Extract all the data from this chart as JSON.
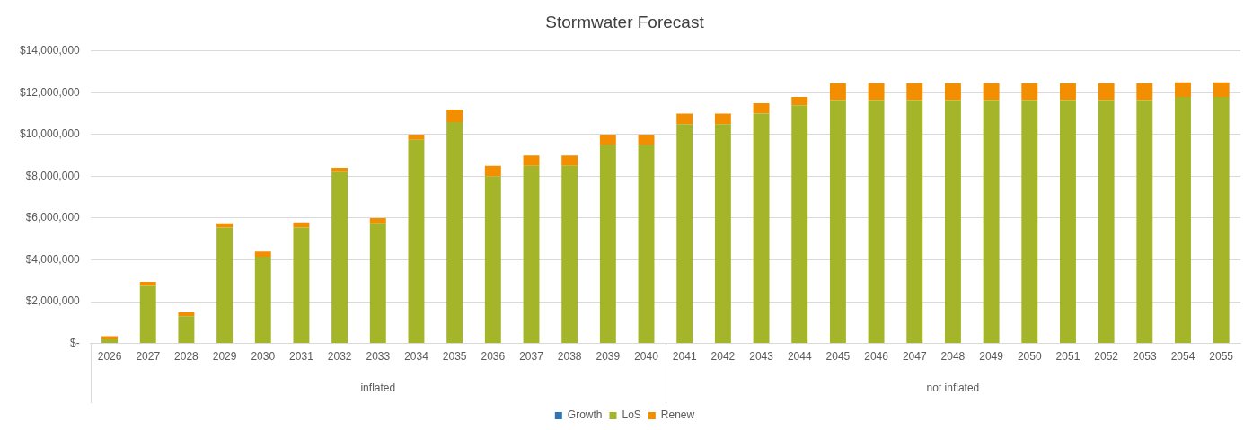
{
  "chart_data": {
    "type": "bar",
    "title": "Stormwater Forecast",
    "categories": [
      "2026",
      "2027",
      "2028",
      "2029",
      "2030",
      "2031",
      "2032",
      "2033",
      "2034",
      "2035",
      "2036",
      "2037",
      "2038",
      "2039",
      "2040",
      "2041",
      "2042",
      "2043",
      "2044",
      "2045",
      "2046",
      "2047",
      "2048",
      "2049",
      "2050",
      "2051",
      "2052",
      "2053",
      "2054",
      "2055"
    ],
    "series": [
      {
        "name": "Growth",
        "color": "#2e75b6",
        "values": [
          0,
          0,
          0,
          0,
          0,
          0,
          0,
          0,
          0,
          0,
          0,
          0,
          0,
          0,
          0,
          0,
          0,
          0,
          0,
          0,
          0,
          0,
          0,
          0,
          0,
          0,
          0,
          0,
          0,
          0
        ]
      },
      {
        "name": "LoS",
        "color": "#a5b52a",
        "values": [
          200000,
          2750000,
          1300000,
          5550000,
          4150000,
          5550000,
          8200000,
          5750000,
          9750000,
          10600000,
          8000000,
          8500000,
          8500000,
          9500000,
          9500000,
          10500000,
          10500000,
          11000000,
          11400000,
          11650000,
          11650000,
          11650000,
          11650000,
          11650000,
          11650000,
          11650000,
          11650000,
          11650000,
          11800000,
          11800000
        ]
      },
      {
        "name": "Renew",
        "color": "#f28e00",
        "values": [
          150000,
          200000,
          200000,
          200000,
          250000,
          250000,
          200000,
          250000,
          250000,
          600000,
          500000,
          500000,
          500000,
          500000,
          500000,
          500000,
          500000,
          500000,
          400000,
          800000,
          800000,
          800000,
          800000,
          800000,
          800000,
          800000,
          800000,
          800000,
          700000,
          700000
        ]
      }
    ],
    "stacked": true,
    "ylim": [
      0,
      14000000
    ],
    "yticks": [
      {
        "value": 0,
        "label": "$-"
      },
      {
        "value": 2000000,
        "label": "$2,000,000"
      },
      {
        "value": 4000000,
        "label": "$4,000,000"
      },
      {
        "value": 6000000,
        "label": "$6,000,000"
      },
      {
        "value": 8000000,
        "label": "$8,000,000"
      },
      {
        "value": 10000000,
        "label": "$10,000,000"
      },
      {
        "value": 12000000,
        "label": "$12,000,000"
      },
      {
        "value": 14000000,
        "label": "$14,000,000"
      }
    ],
    "grid": "y",
    "legend": "bottom",
    "annotations": [
      "inflated",
      "not inflated"
    ]
  }
}
